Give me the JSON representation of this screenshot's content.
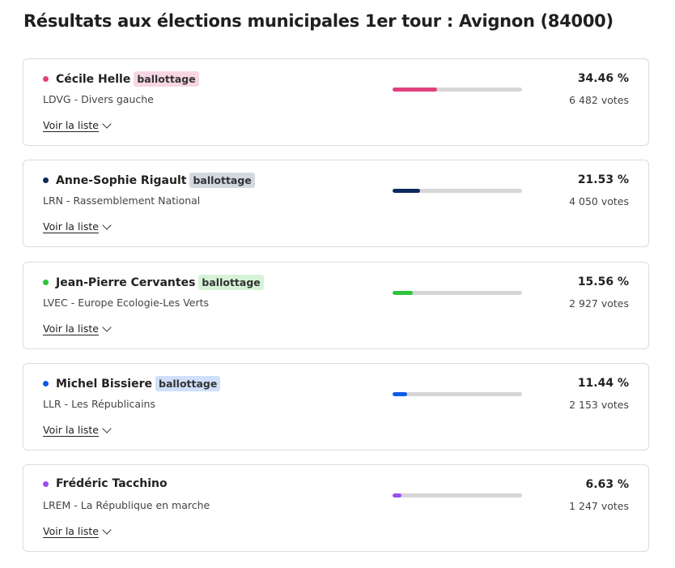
{
  "title": "Résultats aux élections municipales 1er tour : Avignon (84000)",
  "list_label": "Voir la liste",
  "candidates": [
    {
      "name": "Cécile Helle",
      "badge": "ballottage",
      "party": "LDVG - Divers gauche",
      "percent_label": "34.46 %",
      "percent": 34.46,
      "votes": "6 482 votes",
      "color": "#e0407f",
      "badge_bg": "#f8d7e4"
    },
    {
      "name": "Anne-Sophie Rigault",
      "badge": "ballottage",
      "party": "LRN - Rassemblement National",
      "percent_label": "21.53 %",
      "percent": 21.53,
      "votes": "4 050 votes",
      "color": "#0c2a5c",
      "badge_bg": "#d3d8e1"
    },
    {
      "name": "Jean-Pierre Cervantes",
      "badge": "ballottage",
      "party": "LVEC - Europe Ecologie-Les Verts",
      "percent_label": "15.56 %",
      "percent": 15.56,
      "votes": "2 927 votes",
      "color": "#2fc43a",
      "badge_bg": "#d6f3d8"
    },
    {
      "name": "Michel Bissiere",
      "badge": "ballottage",
      "party": "LLR - Les Républicains",
      "percent_label": "11.44 %",
      "percent": 11.44,
      "votes": "2 153 votes",
      "color": "#0a5ce6",
      "badge_bg": "#cfdffa"
    },
    {
      "name": "Frédéric Tacchino",
      "badge": "",
      "party": "LREM - La République en marche",
      "percent_label": "6.63 %",
      "percent": 6.63,
      "votes": "1 247 votes",
      "color": "#9b4cf0",
      "badge_bg": ""
    }
  ]
}
